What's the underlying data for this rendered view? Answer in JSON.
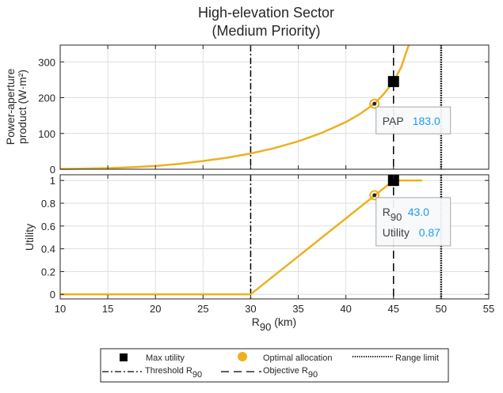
{
  "chart_data": [
    {
      "type": "line",
      "panel": "top",
      "title": "High-elevation Sector",
      "subtitle": "(Medium Priority)",
      "ylabel_line1": "Power-aperture",
      "ylabel_line2": "product (W·m²)",
      "xlim": [
        10,
        55
      ],
      "ylim": [
        0,
        347
      ],
      "yticks": [
        0,
        100,
        200,
        300
      ],
      "ytick_labels": [
        "0",
        "100",
        "200",
        "300"
      ],
      "grid": true,
      "series": [
        {
          "name": "PAP curve",
          "color": "#edb120",
          "x": [
            10,
            12.5,
            15,
            17.5,
            20,
            22.5,
            25,
            27.5,
            30,
            32.5,
            35,
            37.5,
            40,
            41.5,
            43,
            44,
            45,
            45.8,
            46.6
          ],
          "y": [
            0.5,
            1.5,
            3,
            5.5,
            9,
            15,
            23,
            32,
            44,
            59,
            78,
            102,
            132,
            155,
            183,
            211,
            245,
            285,
            347
          ]
        }
      ],
      "markers": {
        "max_utility": {
          "x": 45,
          "y": 245
        },
        "optimal": {
          "x": 43,
          "y": 183
        }
      },
      "datatip": {
        "label": "PAP",
        "value": "183.0"
      }
    },
    {
      "type": "line",
      "panel": "bottom",
      "ylabel": "Utility",
      "xlabel_main": "R",
      "xlabel_sub": "90",
      "xlabel_tail": " (km)",
      "xlim": [
        10,
        55
      ],
      "ylim": [
        -0.04,
        1.05
      ],
      "xticks": [
        10,
        15,
        20,
        25,
        30,
        35,
        40,
        45,
        50,
        55
      ],
      "xtick_labels": [
        "10",
        "15",
        "20",
        "25",
        "30",
        "35",
        "40",
        "45",
        "50",
        "55"
      ],
      "yticks": [
        0,
        0.2,
        0.4,
        0.6,
        0.8,
        1
      ],
      "ytick_labels": [
        "0",
        "0.2",
        "0.4",
        "0.6",
        "0.8",
        "1"
      ],
      "grid": true,
      "series": [
        {
          "name": "Utility curve",
          "color": "#edb120",
          "x": [
            10,
            30,
            45,
            48
          ],
          "y": [
            0,
            0,
            1,
            1
          ]
        }
      ],
      "markers": {
        "max_utility": {
          "x": 45,
          "y": 1
        },
        "optimal": {
          "x": 43,
          "y": 0.87
        }
      },
      "datatip": {
        "label1_main": "R",
        "label1_sub": "90",
        "value1": "43.0",
        "label2": "Utility",
        "value2": "0.87"
      }
    }
  ],
  "reference_lines": {
    "threshold": 30,
    "objective": 45,
    "range_limit": 50
  },
  "legend": {
    "placement": "bottom-center",
    "items": [
      {
        "key": "max_utility",
        "label": "Max utility"
      },
      {
        "key": "optimal",
        "label": "Optimal allocation"
      },
      {
        "key": "range_limit",
        "label": "Range limit"
      },
      {
        "key": "threshold",
        "label_main": "Threshold R",
        "label_sub": "90"
      },
      {
        "key": "objective",
        "label_main": "Objective R",
        "label_sub": "90"
      }
    ]
  },
  "colors": {
    "curve": "#edb120",
    "marker_square": "#000000",
    "optimal_fill": "#edb120",
    "optimal_dot": "#262626",
    "datatip_value": "#1e9bef"
  }
}
